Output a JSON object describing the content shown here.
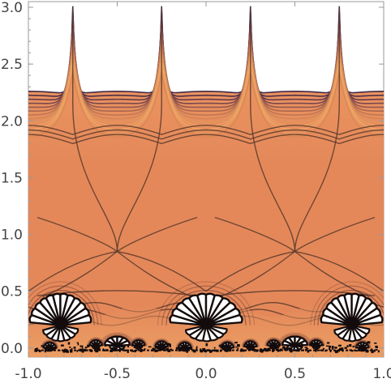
{
  "chart_data": {
    "type": "contour",
    "title": "",
    "xlabel": "",
    "ylabel": "",
    "xlim": [
      -1.0,
      1.0
    ],
    "ylim": [
      -0.08,
      3.05
    ],
    "x_ticks": [
      "-1.0",
      "-0.5",
      "0.0",
      "0.5",
      "1.0"
    ],
    "y_ticks": [
      "0.0",
      "0.5",
      "1.0",
      "1.5",
      "2.0",
      "2.5",
      "3.0"
    ],
    "x_tick_values": [
      -1.0,
      -0.5,
      0.0,
      0.5,
      1.0
    ],
    "y_tick_values": [
      0.0,
      0.5,
      1.0,
      1.5,
      2.0,
      2.5,
      3.0
    ],
    "frame": true,
    "grid": false,
    "periodicity_x": 1.0,
    "cusp_x": [
      -0.75,
      -0.25,
      0.25,
      0.75
    ],
    "crossing_points": [
      [
        -0.5,
        0.85
      ],
      [
        0.5,
        0.85
      ]
    ],
    "fan_centers": [
      [
        -0.82,
        0.2
      ],
      [
        0.0,
        0.2
      ],
      [
        0.82,
        0.2
      ]
    ],
    "colors": {
      "main_fill": "#e4885a",
      "upper_light": "#f3b070",
      "upper_dark": "#3a1a3a",
      "contour": "#5a3a2a",
      "bottom_bands": "#e9a56f",
      "edge_dark": "#1a0e12"
    }
  }
}
